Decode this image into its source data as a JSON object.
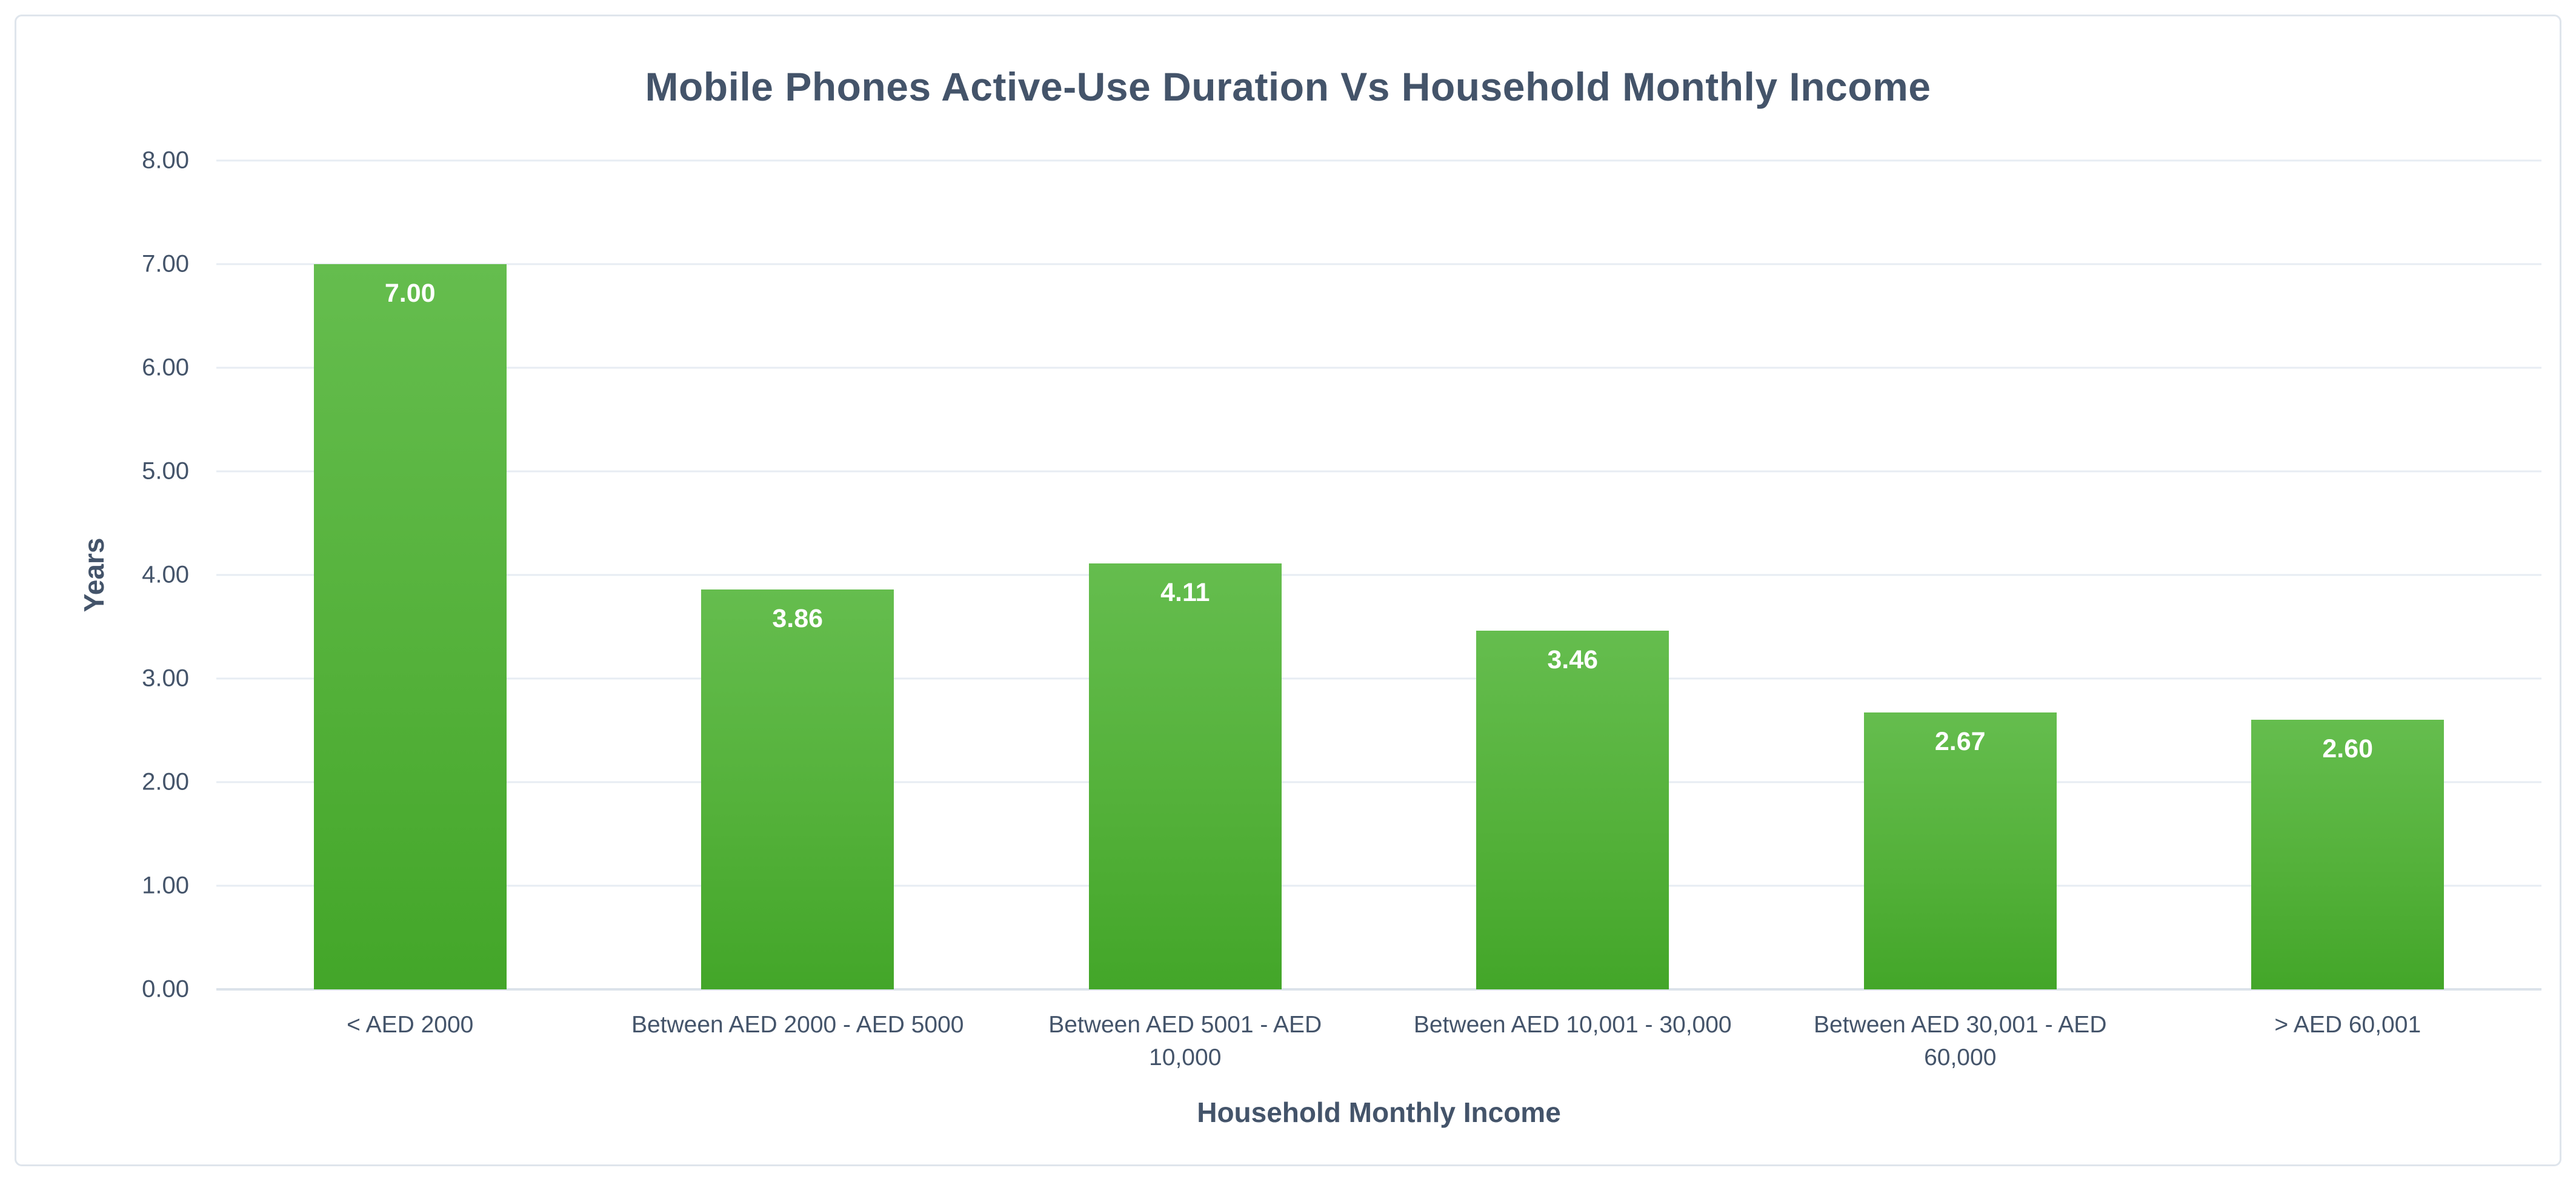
{
  "chart_data": {
    "type": "bar",
    "title": "Mobile Phones Active-Use Duration Vs Household Monthly Income",
    "xlabel": "Household Monthly Income",
    "ylabel": "Years",
    "categories": [
      "< AED 2000",
      "Between AED 2000 - AED 5000",
      "Between AED 5001 - AED 10,000",
      "Between AED 10,001 - 30,000",
      "Between AED 30,001 - AED 60,000",
      "> AED 60,001"
    ],
    "category_lines": [
      [
        "< AED 2000"
      ],
      [
        "Between AED 2000 - AED 5000"
      ],
      [
        "Between AED 5001 - AED",
        "10,000"
      ],
      [
        "Between AED 10,001 - 30,000"
      ],
      [
        "Between AED 30,001 - AED",
        "60,000"
      ],
      [
        "> AED 60,001"
      ]
    ],
    "values": [
      7.0,
      3.86,
      4.11,
      3.46,
      2.67,
      2.6
    ],
    "value_labels": [
      "7.00",
      "3.86",
      "4.11",
      "3.46",
      "2.67",
      "2.60"
    ],
    "ylim": [
      0,
      8
    ],
    "ytick_step": 1,
    "ytick_labels": [
      "0.00",
      "1.00",
      "2.00",
      "3.00",
      "4.00",
      "5.00",
      "6.00",
      "7.00",
      "8.00"
    ],
    "grid": true,
    "legend": "none",
    "colors": {
      "bar_gradient_top": "#65bd4e",
      "bar_gradient_bottom": "#43a629",
      "value_label_text": "#ffffff",
      "axis_text": "#44546a",
      "title_text": "#44546a",
      "gridline": "#e7ecf3",
      "baseline": "#dbe2ea",
      "frame_border": "#dfe5ec",
      "background": "#ffffff"
    }
  }
}
